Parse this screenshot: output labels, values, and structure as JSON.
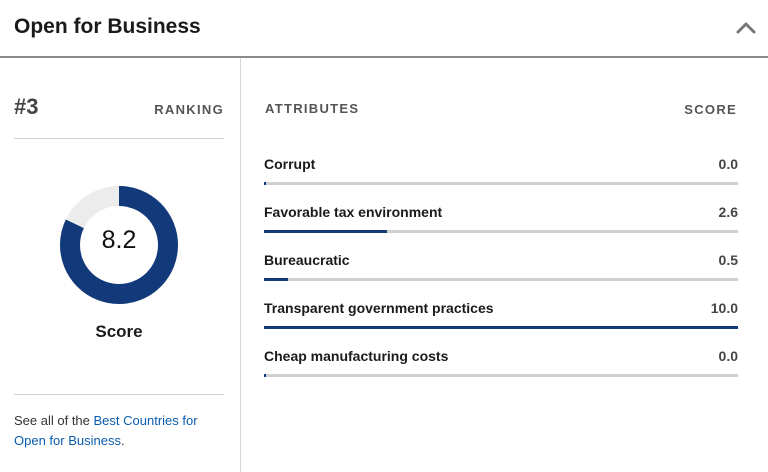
{
  "header": {
    "title": "Open for Business",
    "collapse_icon": "chevron-up-icon"
  },
  "ranking": {
    "rank": "#3",
    "label": "RANKING"
  },
  "score": {
    "value": "8.2",
    "label": "Score",
    "fraction": 0.82,
    "fill_color": "#123a7b",
    "track_color": "#ececec"
  },
  "footer": {
    "prefix": "See all of the ",
    "link_text": "Best Countries for Open for Business",
    "suffix": "."
  },
  "attributes": {
    "header": "ATTRIBUTES",
    "score_header": "SCORE",
    "items": [
      {
        "label": "Corrupt",
        "value": "0.0",
        "score": 0.0
      },
      {
        "label": "Favorable tax environment",
        "value": "2.6",
        "score": 2.6
      },
      {
        "label": "Bureaucratic",
        "value": "0.5",
        "score": 0.5
      },
      {
        "label": "Transparent government practices",
        "value": "10.0",
        "score": 10.0
      },
      {
        "label": "Cheap manufacturing costs",
        "value": "0.0",
        "score": 0.0
      }
    ],
    "bar_color": "#123a7b",
    "track_color": "#d0d0d0"
  }
}
